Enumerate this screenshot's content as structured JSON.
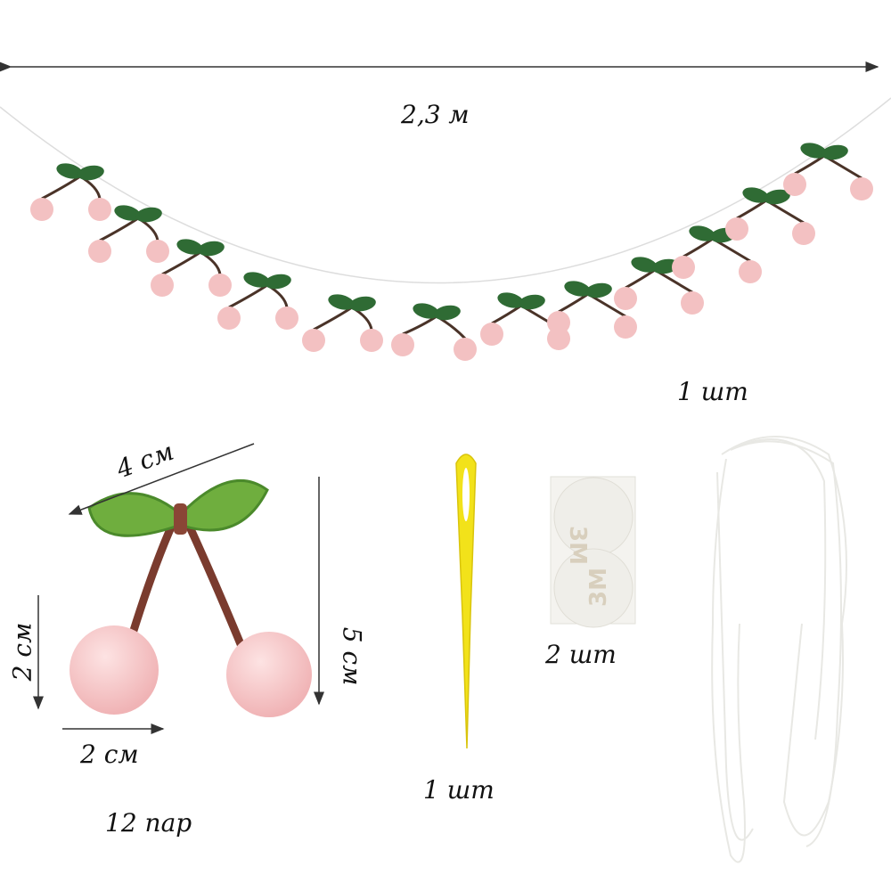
{
  "labels": {
    "garland_length": "2,3 м",
    "thread_count": "1 шт",
    "cherry_width": "4 см",
    "ball_height": "2 см",
    "cherry_height": "5 см",
    "ball_width": "2 см",
    "cherry_count": "12 пар",
    "needle_count": "1 шт",
    "tape_count": "2 шт"
  },
  "tape_logo": "3M",
  "colors": {
    "leaf": "#3f8a3a",
    "leaf_light": "#7db84a",
    "pompom": "#f6c4c4",
    "stem": "#7a3b2e",
    "needle": "#f2e21a",
    "arrow": "#333333"
  }
}
